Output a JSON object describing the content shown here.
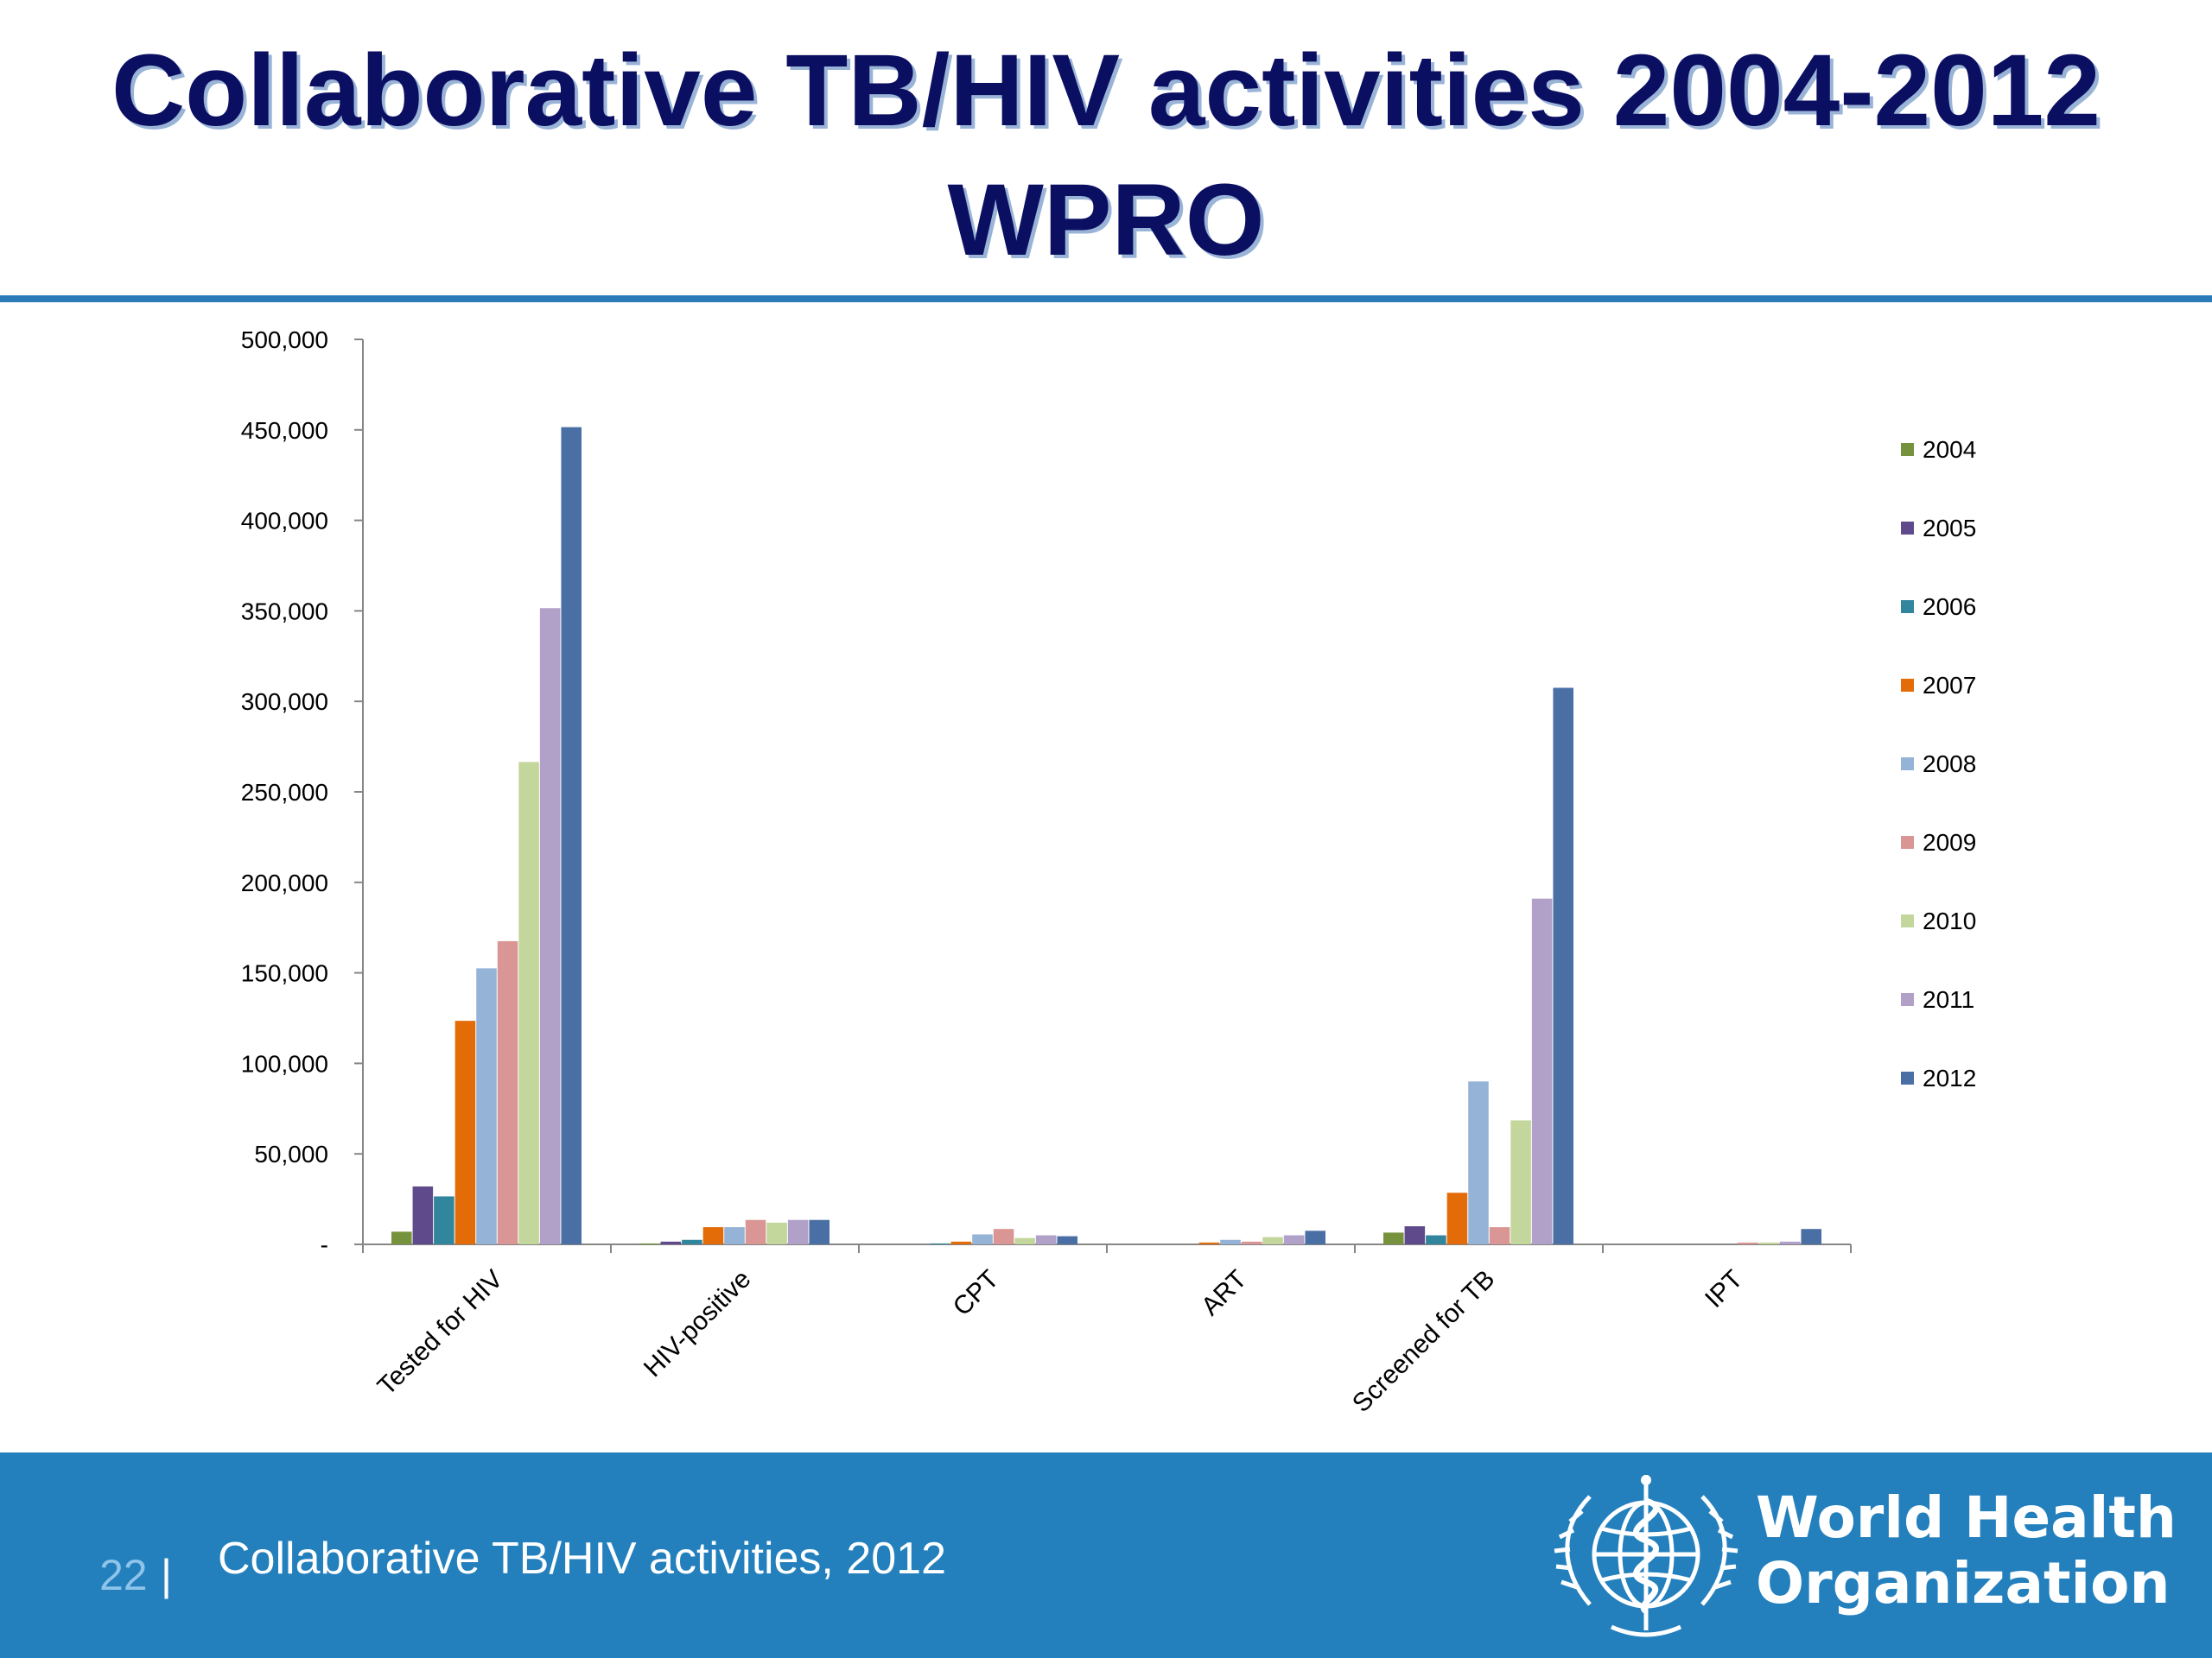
{
  "slide": {
    "title_line1": "Collaborative TB/HIV activities 2004-2012",
    "title_line2": "WPRO",
    "footer_text": "Collaborative TB/HIV activities, 2012",
    "slide_number": "22",
    "separator": "|",
    "logo": {
      "name_line1": "World Health",
      "name_line2": "Organization",
      "icon": "who-emblem"
    },
    "colors": {
      "title": "#0b0f62",
      "rule": "#2a7bb7",
      "footer": "#2380bd"
    }
  },
  "chart_data": {
    "type": "bar",
    "categories": [
      "Tested for HIV",
      "HIV-positive",
      "CPT",
      "ART",
      "Screened for TB",
      "IPT"
    ],
    "yticks": [
      "-",
      "50,000",
      "100,000",
      "150,000",
      "200,000",
      "250,000",
      "300,000",
      "350,000",
      "400,000",
      "450,000",
      "500,000"
    ],
    "ylim": [
      0,
      500000
    ],
    "legend_position": "right",
    "grid": false,
    "series": [
      {
        "name": "2004",
        "color": "#76923c",
        "values": [
          7000,
          500,
          0,
          0,
          6500,
          0
        ]
      },
      {
        "name": "2005",
        "color": "#5f4b8b",
        "values": [
          32000,
          1500,
          0,
          0,
          10000,
          0
        ]
      },
      {
        "name": "2006",
        "color": "#31859c",
        "values": [
          26500,
          2500,
          500,
          0,
          5000,
          0
        ]
      },
      {
        "name": "2007",
        "color": "#e36c09",
        "values": [
          123500,
          9500,
          1500,
          1000,
          28500,
          0
        ]
      },
      {
        "name": "2008",
        "color": "#95b3d7",
        "values": [
          152500,
          9500,
          5500,
          2500,
          90000,
          0
        ]
      },
      {
        "name": "2009",
        "color": "#da9694",
        "values": [
          167500,
          13500,
          8500,
          1500,
          9500,
          1000
        ]
      },
      {
        "name": "2010",
        "color": "#c3d69b",
        "values": [
          266500,
          12000,
          3500,
          4000,
          68500,
          1000
        ]
      },
      {
        "name": "2011",
        "color": "#b1a0c7",
        "values": [
          351500,
          13500,
          5000,
          5000,
          191000,
          1500
        ]
      },
      {
        "name": "2012",
        "color": "#4a6fa5",
        "values": [
          451500,
          13500,
          4500,
          7500,
          307500,
          8500
        ]
      }
    ]
  }
}
